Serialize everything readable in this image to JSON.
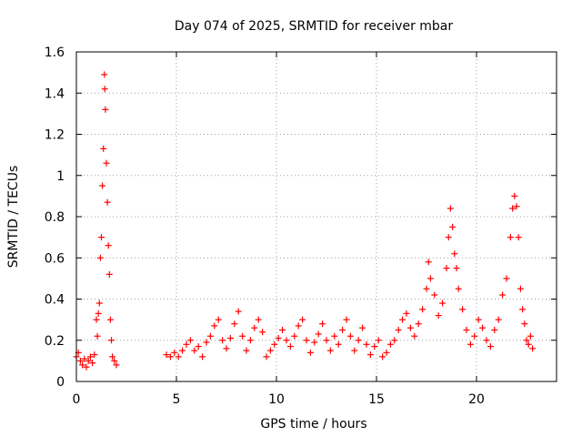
{
  "chart_data": {
    "type": "scatter",
    "title": "Day 074 of 2025, SRMTID for receiver mbar",
    "xlabel": "GPS time / hours",
    "ylabel": "SRMTID / TECUs",
    "xlim": [
      0,
      24
    ],
    "ylim": [
      0,
      1.6
    ],
    "xticks": [
      0,
      5,
      10,
      15,
      20
    ],
    "xtick_labels": [
      "0",
      "5",
      "10",
      "15",
      "20"
    ],
    "yticks": [
      0,
      0.2,
      0.4,
      0.6,
      0.8,
      1.0,
      1.2,
      1.4,
      1.6
    ],
    "ytick_labels": [
      "0",
      "0.2",
      "0.4",
      "0.6",
      "0.8",
      "1",
      "1.2",
      "1.4",
      "1.6"
    ],
    "grid": true,
    "marker": "plus",
    "color": "#ff0000",
    "series": [
      {
        "name": "SRMTID",
        "points": [
          [
            0.0,
            0.12
          ],
          [
            0.1,
            0.14
          ],
          [
            0.2,
            0.1
          ],
          [
            0.3,
            0.08
          ],
          [
            0.4,
            0.11
          ],
          [
            0.5,
            0.07
          ],
          [
            0.6,
            0.1
          ],
          [
            0.7,
            0.12
          ],
          [
            0.8,
            0.09
          ],
          [
            0.9,
            0.13
          ],
          [
            1.0,
            0.3
          ],
          [
            1.05,
            0.22
          ],
          [
            1.1,
            0.33
          ],
          [
            1.15,
            0.38
          ],
          [
            1.2,
            0.6
          ],
          [
            1.25,
            0.7
          ],
          [
            1.3,
            0.95
          ],
          [
            1.35,
            1.13
          ],
          [
            1.4,
            1.49
          ],
          [
            1.42,
            1.42
          ],
          [
            1.45,
            1.32
          ],
          [
            1.5,
            1.06
          ],
          [
            1.55,
            0.87
          ],
          [
            1.6,
            0.66
          ],
          [
            1.65,
            0.52
          ],
          [
            1.7,
            0.3
          ],
          [
            1.75,
            0.2
          ],
          [
            1.8,
            0.12
          ],
          [
            1.9,
            0.1
          ],
          [
            2.0,
            0.08
          ],
          [
            4.5,
            0.13
          ],
          [
            4.7,
            0.12
          ],
          [
            4.9,
            0.14
          ],
          [
            5.1,
            0.12
          ],
          [
            5.3,
            0.15
          ],
          [
            5.5,
            0.18
          ],
          [
            5.7,
            0.2
          ],
          [
            5.9,
            0.15
          ],
          [
            6.1,
            0.17
          ],
          [
            6.3,
            0.12
          ],
          [
            6.5,
            0.19
          ],
          [
            6.7,
            0.22
          ],
          [
            6.9,
            0.27
          ],
          [
            7.1,
            0.3
          ],
          [
            7.3,
            0.2
          ],
          [
            7.5,
            0.16
          ],
          [
            7.7,
            0.21
          ],
          [
            7.9,
            0.28
          ],
          [
            8.1,
            0.34
          ],
          [
            8.3,
            0.22
          ],
          [
            8.5,
            0.15
          ],
          [
            8.7,
            0.2
          ],
          [
            8.9,
            0.26
          ],
          [
            9.1,
            0.3
          ],
          [
            9.3,
            0.24
          ],
          [
            9.5,
            0.12
          ],
          [
            9.7,
            0.15
          ],
          [
            9.9,
            0.18
          ],
          [
            10.1,
            0.21
          ],
          [
            10.3,
            0.25
          ],
          [
            10.5,
            0.2
          ],
          [
            10.7,
            0.17
          ],
          [
            10.9,
            0.22
          ],
          [
            11.1,
            0.27
          ],
          [
            11.3,
            0.3
          ],
          [
            11.5,
            0.2
          ],
          [
            11.7,
            0.14
          ],
          [
            11.9,
            0.19
          ],
          [
            12.1,
            0.23
          ],
          [
            12.3,
            0.28
          ],
          [
            12.5,
            0.2
          ],
          [
            12.7,
            0.15
          ],
          [
            12.9,
            0.22
          ],
          [
            13.1,
            0.18
          ],
          [
            13.3,
            0.25
          ],
          [
            13.5,
            0.3
          ],
          [
            13.7,
            0.22
          ],
          [
            13.9,
            0.15
          ],
          [
            14.1,
            0.2
          ],
          [
            14.3,
            0.26
          ],
          [
            14.5,
            0.18
          ],
          [
            14.7,
            0.13
          ],
          [
            14.9,
            0.17
          ],
          [
            15.1,
            0.2
          ],
          [
            15.3,
            0.12
          ],
          [
            15.5,
            0.14
          ],
          [
            15.7,
            0.18
          ],
          [
            15.9,
            0.2
          ],
          [
            16.1,
            0.25
          ],
          [
            16.3,
            0.3
          ],
          [
            16.5,
            0.33
          ],
          [
            16.7,
            0.26
          ],
          [
            16.9,
            0.22
          ],
          [
            17.1,
            0.28
          ],
          [
            17.3,
            0.35
          ],
          [
            17.5,
            0.45
          ],
          [
            17.6,
            0.58
          ],
          [
            17.7,
            0.5
          ],
          [
            17.9,
            0.42
          ],
          [
            18.1,
            0.32
          ],
          [
            18.3,
            0.38
          ],
          [
            18.5,
            0.55
          ],
          [
            18.6,
            0.7
          ],
          [
            18.7,
            0.84
          ],
          [
            18.8,
            0.75
          ],
          [
            18.9,
            0.62
          ],
          [
            19.0,
            0.55
          ],
          [
            19.1,
            0.45
          ],
          [
            19.3,
            0.35
          ],
          [
            19.5,
            0.25
          ],
          [
            19.7,
            0.18
          ],
          [
            19.9,
            0.22
          ],
          [
            20.1,
            0.3
          ],
          [
            20.3,
            0.26
          ],
          [
            20.5,
            0.2
          ],
          [
            20.7,
            0.17
          ],
          [
            20.9,
            0.25
          ],
          [
            21.1,
            0.3
          ],
          [
            21.3,
            0.42
          ],
          [
            21.5,
            0.5
          ],
          [
            21.7,
            0.7
          ],
          [
            21.8,
            0.84
          ],
          [
            21.9,
            0.9
          ],
          [
            22.0,
            0.85
          ],
          [
            22.1,
            0.7
          ],
          [
            22.2,
            0.45
          ],
          [
            22.3,
            0.35
          ],
          [
            22.4,
            0.28
          ],
          [
            22.5,
            0.2
          ],
          [
            22.6,
            0.18
          ],
          [
            22.7,
            0.22
          ],
          [
            22.8,
            0.16
          ]
        ]
      }
    ]
  }
}
